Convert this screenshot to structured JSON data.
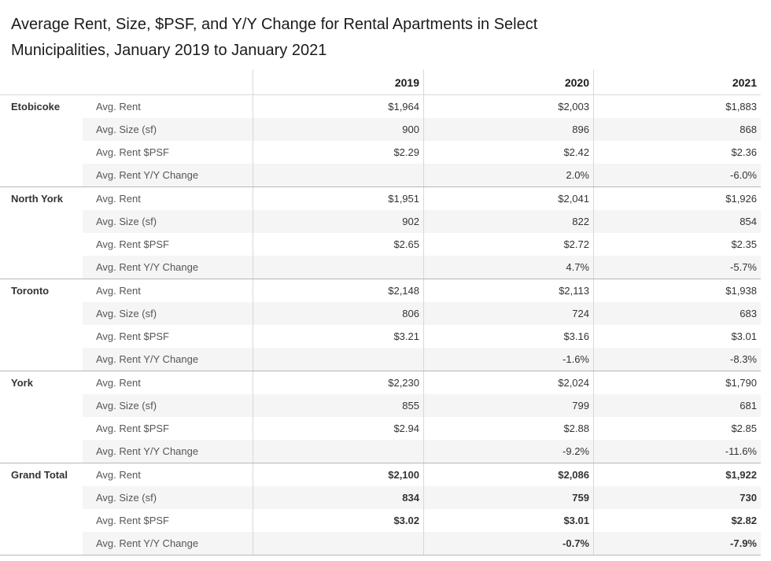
{
  "chart_data": {
    "type": "table",
    "title": "Average Rent, Size, $PSF, and Y/Y Change for Rental Apartments in Select Municipalities, January 2019 to January 2021",
    "columns": [
      "2019",
      "2020",
      "2021"
    ],
    "metrics": [
      "Avg. Rent",
      "Avg. Size (sf)",
      "Avg. Rent $PSF",
      "Avg. Rent Y/Y Change"
    ],
    "groups": [
      {
        "municipality": "Etobicoke",
        "rows": [
          {
            "metric": "Avg. Rent",
            "values": [
              "$1,964",
              "$2,003",
              "$1,883"
            ]
          },
          {
            "metric": "Avg. Size (sf)",
            "values": [
              "900",
              "896",
              "868"
            ]
          },
          {
            "metric": "Avg. Rent $PSF",
            "values": [
              "$2.29",
              "$2.42",
              "$2.36"
            ]
          },
          {
            "metric": "Avg. Rent Y/Y Change",
            "values": [
              "",
              "2.0%",
              "-6.0%"
            ]
          }
        ]
      },
      {
        "municipality": "North York",
        "rows": [
          {
            "metric": "Avg. Rent",
            "values": [
              "$1,951",
              "$2,041",
              "$1,926"
            ]
          },
          {
            "metric": "Avg. Size (sf)",
            "values": [
              "902",
              "822",
              "854"
            ]
          },
          {
            "metric": "Avg. Rent $PSF",
            "values": [
              "$2.65",
              "$2.72",
              "$2.35"
            ]
          },
          {
            "metric": "Avg. Rent Y/Y Change",
            "values": [
              "",
              "4.7%",
              "-5.7%"
            ]
          }
        ]
      },
      {
        "municipality": "Toronto",
        "rows": [
          {
            "metric": "Avg. Rent",
            "values": [
              "$2,148",
              "$2,113",
              "$1,938"
            ]
          },
          {
            "metric": "Avg. Size (sf)",
            "values": [
              "806",
              "724",
              "683"
            ]
          },
          {
            "metric": "Avg. Rent $PSF",
            "values": [
              "$3.21",
              "$3.16",
              "$3.01"
            ]
          },
          {
            "metric": "Avg. Rent Y/Y Change",
            "values": [
              "",
              "-1.6%",
              "-8.3%"
            ]
          }
        ]
      },
      {
        "municipality": "York",
        "rows": [
          {
            "metric": "Avg. Rent",
            "values": [
              "$2,230",
              "$2,024",
              "$1,790"
            ]
          },
          {
            "metric": "Avg. Size (sf)",
            "values": [
              "855",
              "799",
              "681"
            ]
          },
          {
            "metric": "Avg. Rent $PSF",
            "values": [
              "$2.94",
              "$2.88",
              "$2.85"
            ]
          },
          {
            "metric": "Avg. Rent Y/Y Change",
            "values": [
              "",
              "-9.2%",
              "-11.6%"
            ]
          }
        ]
      },
      {
        "municipality": "Grand Total",
        "rows": [
          {
            "metric": "Avg. Rent",
            "values": [
              "$2,100",
              "$2,086",
              "$1,922"
            ]
          },
          {
            "metric": "Avg. Size (sf)",
            "values": [
              "834",
              "759",
              "730"
            ]
          },
          {
            "metric": "Avg. Rent $PSF",
            "values": [
              "$3.02",
              "$3.01",
              "$2.82"
            ]
          },
          {
            "metric": "Avg. Rent Y/Y Change",
            "values": [
              "",
              "-0.7%",
              "-7.9%"
            ]
          }
        ]
      }
    ],
    "colors": {
      "stripe": "#f5f5f5",
      "grid_line": "#d8d8d8",
      "group_separator": "#b7b7b7",
      "title_text": "#1b1b1b",
      "value_text": "#343434",
      "metric_text": "#565656"
    },
    "layout": {
      "legend": "none",
      "grid": "row-banding"
    }
  }
}
